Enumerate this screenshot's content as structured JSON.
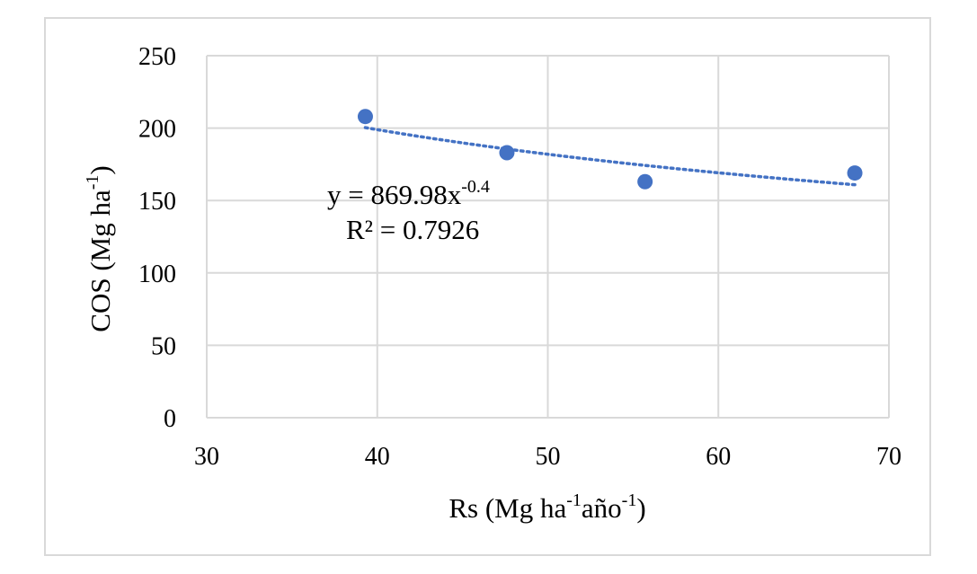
{
  "chart_data": {
    "type": "scatter",
    "title": "",
    "xlabel": {
      "base": "Rs (Mg ha",
      "sup1": "-1",
      "mid": "año",
      "sup2": "-1",
      "end": ")"
    },
    "ylabel": {
      "base": "COS (Mg ha",
      "sup": "-1",
      "end": ")"
    },
    "xlim": [
      30,
      70
    ],
    "ylim": [
      0,
      250
    ],
    "xticks": [
      30,
      40,
      50,
      60,
      70
    ],
    "yticks": [
      0,
      50,
      100,
      150,
      200,
      250
    ],
    "grid": true,
    "legend": "none",
    "series": [
      {
        "color": "#4472c4",
        "x": [
          39.3,
          47.6,
          55.7,
          68.0
        ],
        "y": [
          208,
          183,
          163,
          169
        ]
      }
    ],
    "trendline": {
      "type": "power",
      "a": 869.98,
      "b": -0.4,
      "x_range": [
        39.3,
        68.0
      ],
      "color": "#4472c4",
      "style": "dotted"
    },
    "annotations": {
      "equation_base": "y = 869.98x",
      "equation_exp": "-0.4",
      "r_squared": "R² = 0.7926"
    }
  }
}
